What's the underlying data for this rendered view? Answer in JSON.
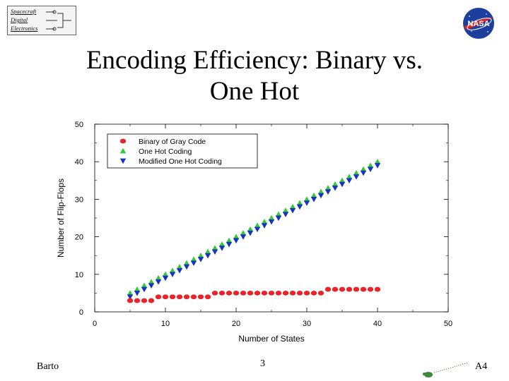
{
  "header": {
    "logo_lines": [
      "Spacecraft",
      "Digital",
      "Electronics"
    ],
    "nasa_text": "NASA",
    "title": "Encoding Efficiency: Binary vs.",
    "title_line2": "One Hot"
  },
  "footer": {
    "author": "Barto",
    "page_number": "3",
    "slide_code": "A4"
  },
  "colors": {
    "binary": "#e8232a",
    "one_hot": "#2ecc2e",
    "modified": "#1533c8",
    "nasa_blue": "#1c3f9e",
    "nasa_red": "#d6262b"
  },
  "chart_data": {
    "type": "scatter",
    "title": "",
    "xlabel": "Number of States",
    "ylabel": "Number of Flip-Flops",
    "xlim": [
      0,
      50
    ],
    "ylim": [
      0,
      50
    ],
    "xticks": [
      0,
      10,
      20,
      30,
      40,
      50
    ],
    "yticks": [
      0,
      10,
      20,
      30,
      40,
      50
    ],
    "legend_position": "top-left",
    "series": [
      {
        "name": "Binary of Gray Code",
        "marker": "circle",
        "x": [
          5,
          6,
          7,
          8,
          9,
          10,
          11,
          12,
          13,
          14,
          15,
          16,
          17,
          18,
          19,
          20,
          21,
          22,
          23,
          24,
          25,
          26,
          27,
          28,
          29,
          30,
          31,
          32,
          33,
          34,
          35,
          36,
          37,
          38,
          39,
          40
        ],
        "y": [
          3,
          3,
          3,
          3,
          4,
          4,
          4,
          4,
          4,
          4,
          4,
          4,
          5,
          5,
          5,
          5,
          5,
          5,
          5,
          5,
          5,
          5,
          5,
          5,
          5,
          5,
          5,
          5,
          6,
          6,
          6,
          6,
          6,
          6,
          6,
          6
        ]
      },
      {
        "name": "One Hot Coding",
        "marker": "triangle-up",
        "x": [
          5,
          6,
          7,
          8,
          9,
          10,
          11,
          12,
          13,
          14,
          15,
          16,
          17,
          18,
          19,
          20,
          21,
          22,
          23,
          24,
          25,
          26,
          27,
          28,
          29,
          30,
          31,
          32,
          33,
          34,
          35,
          36,
          37,
          38,
          39,
          40
        ],
        "y": [
          5,
          6,
          7,
          8,
          9,
          10,
          11,
          12,
          13,
          14,
          15,
          16,
          17,
          18,
          19,
          20,
          21,
          22,
          23,
          24,
          25,
          26,
          27,
          28,
          29,
          30,
          31,
          32,
          33,
          34,
          35,
          36,
          37,
          38,
          39,
          40
        ]
      },
      {
        "name": "Modified One Hot Coding",
        "marker": "triangle-down",
        "x": [
          5,
          6,
          7,
          8,
          9,
          10,
          11,
          12,
          13,
          14,
          15,
          16,
          17,
          18,
          19,
          20,
          21,
          22,
          23,
          24,
          25,
          26,
          27,
          28,
          29,
          30,
          31,
          32,
          33,
          34,
          35,
          36,
          37,
          38,
          39,
          40
        ],
        "y": [
          4,
          5,
          6,
          7,
          8,
          9,
          10,
          11,
          12,
          13,
          14,
          15,
          16,
          17,
          18,
          19,
          20,
          21,
          22,
          23,
          24,
          25,
          26,
          27,
          28,
          29,
          30,
          31,
          32,
          33,
          34,
          35,
          36,
          37,
          38,
          39
        ]
      }
    ]
  }
}
